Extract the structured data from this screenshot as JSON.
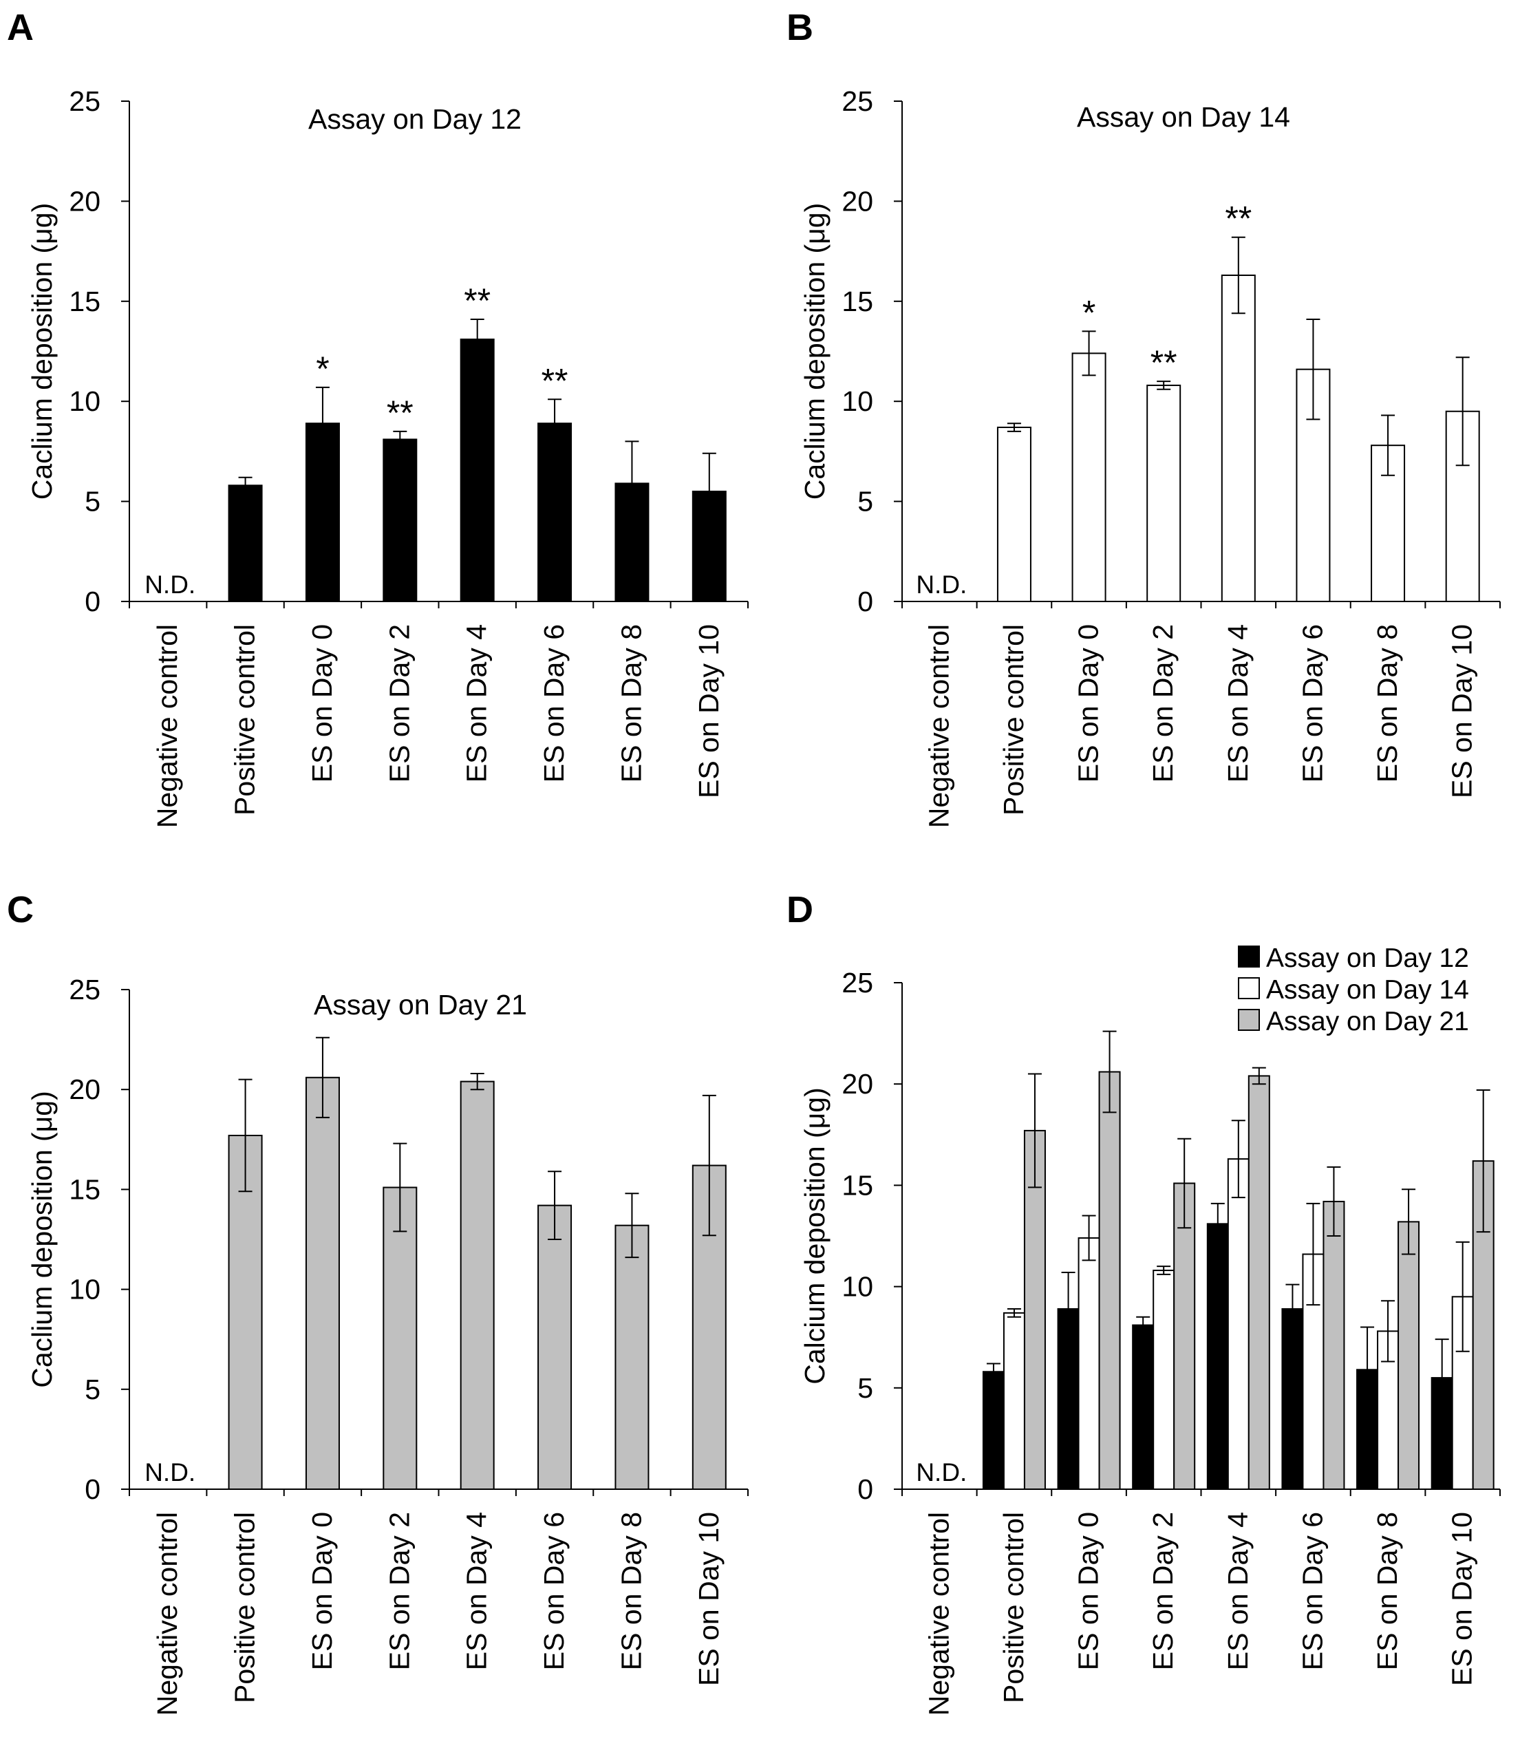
{
  "chart_data": [
    {
      "type": "bar",
      "panel": "A",
      "title": "Assay on Day 12",
      "xlabel": "",
      "ylabel": "Caclium deposition (μg)",
      "ylim": [
        0,
        25
      ],
      "yticks": [
        0,
        5,
        10,
        15,
        20,
        25
      ],
      "categories": [
        "Negative control",
        "Positive control",
        "ES on Day 0",
        "ES on Day 2",
        "ES on Day 4",
        "ES on Day 6",
        "ES on Day 8",
        "ES on Day 10"
      ],
      "series": [
        {
          "name": "Assay on Day 12",
          "color": "#000000",
          "values": [
            null,
            5.8,
            8.9,
            8.1,
            13.1,
            8.9,
            5.9,
            5.5
          ],
          "errors": [
            null,
            0.4,
            1.8,
            0.4,
            1.0,
            1.2,
            2.1,
            1.9
          ]
        }
      ],
      "annotations": [
        "",
        "",
        "*",
        "**",
        "**",
        "**",
        "",
        ""
      ],
      "nd_label": "N.D."
    },
    {
      "type": "bar",
      "panel": "B",
      "title": "Assay on Day 14",
      "xlabel": "",
      "ylabel": "Caclium deposition (μg)",
      "ylim": [
        0,
        25
      ],
      "yticks": [
        0,
        5,
        10,
        15,
        20,
        25
      ],
      "categories": [
        "Negative control",
        "Positive control",
        "ES on Day 0",
        "ES on Day 2",
        "ES on Day 4",
        "ES on Day 6",
        "ES on Day 8",
        "ES on Day 10"
      ],
      "series": [
        {
          "name": "Assay on Day 14",
          "color": "#ffffff",
          "values": [
            null,
            8.7,
            12.4,
            10.8,
            16.3,
            11.6,
            7.8,
            9.5
          ],
          "errors": [
            null,
            0.2,
            1.1,
            0.2,
            1.9,
            2.5,
            1.5,
            2.7
          ]
        }
      ],
      "annotations": [
        "",
        "",
        "*",
        "**",
        "**",
        "",
        "",
        ""
      ],
      "nd_label": "N.D."
    },
    {
      "type": "bar",
      "panel": "C",
      "title": "Assay on Day 21",
      "xlabel": "",
      "ylabel": "Caclium deposition (μg)",
      "ylim": [
        0,
        25
      ],
      "yticks": [
        0,
        5,
        10,
        15,
        20,
        25
      ],
      "categories": [
        "Negative control",
        "Positive control",
        "ES on Day 0",
        "ES on Day 2",
        "ES on Day 4",
        "ES on Day 6",
        "ES on Day 8",
        "ES on Day 10"
      ],
      "series": [
        {
          "name": "Assay on Day 21",
          "color": "#c0c0c0",
          "values": [
            null,
            17.7,
            20.6,
            15.1,
            20.4,
            14.2,
            13.2,
            16.2
          ],
          "errors": [
            null,
            2.8,
            2.0,
            2.2,
            0.4,
            1.7,
            1.6,
            3.5
          ]
        }
      ],
      "annotations": [
        "",
        "",
        "",
        "",
        "",
        "",
        "",
        ""
      ],
      "nd_label": "N.D."
    },
    {
      "type": "bar",
      "panel": "D",
      "title": "",
      "xlabel": "",
      "ylabel": "Calcium deposition (μg)",
      "ylim": [
        0,
        25
      ],
      "yticks": [
        0,
        5,
        10,
        15,
        20,
        25
      ],
      "categories": [
        "Negative control",
        "Positive control",
        "ES on Day 0",
        "ES on Day 2",
        "ES on Day 4",
        "ES on Day 6",
        "ES on Day 8",
        "ES on Day 10"
      ],
      "series": [
        {
          "name": "Assay on Day 12",
          "color": "#000000",
          "values": [
            null,
            5.8,
            8.9,
            8.1,
            13.1,
            8.9,
            5.9,
            5.5
          ],
          "errors": [
            null,
            0.4,
            1.8,
            0.4,
            1.0,
            1.2,
            2.1,
            1.9
          ]
        },
        {
          "name": "Assay on Day 14",
          "color": "#ffffff",
          "values": [
            null,
            8.7,
            12.4,
            10.8,
            16.3,
            11.6,
            7.8,
            9.5
          ],
          "errors": [
            null,
            0.2,
            1.1,
            0.2,
            1.9,
            2.5,
            1.5,
            2.7
          ]
        },
        {
          "name": "Assay on Day 21",
          "color": "#c0c0c0",
          "values": [
            null,
            17.7,
            20.6,
            15.1,
            20.4,
            14.2,
            13.2,
            16.2
          ],
          "errors": [
            null,
            2.8,
            2.0,
            2.2,
            0.4,
            1.7,
            1.6,
            3.5
          ]
        }
      ],
      "legend_position": "top-right",
      "nd_label": "N.D."
    }
  ]
}
